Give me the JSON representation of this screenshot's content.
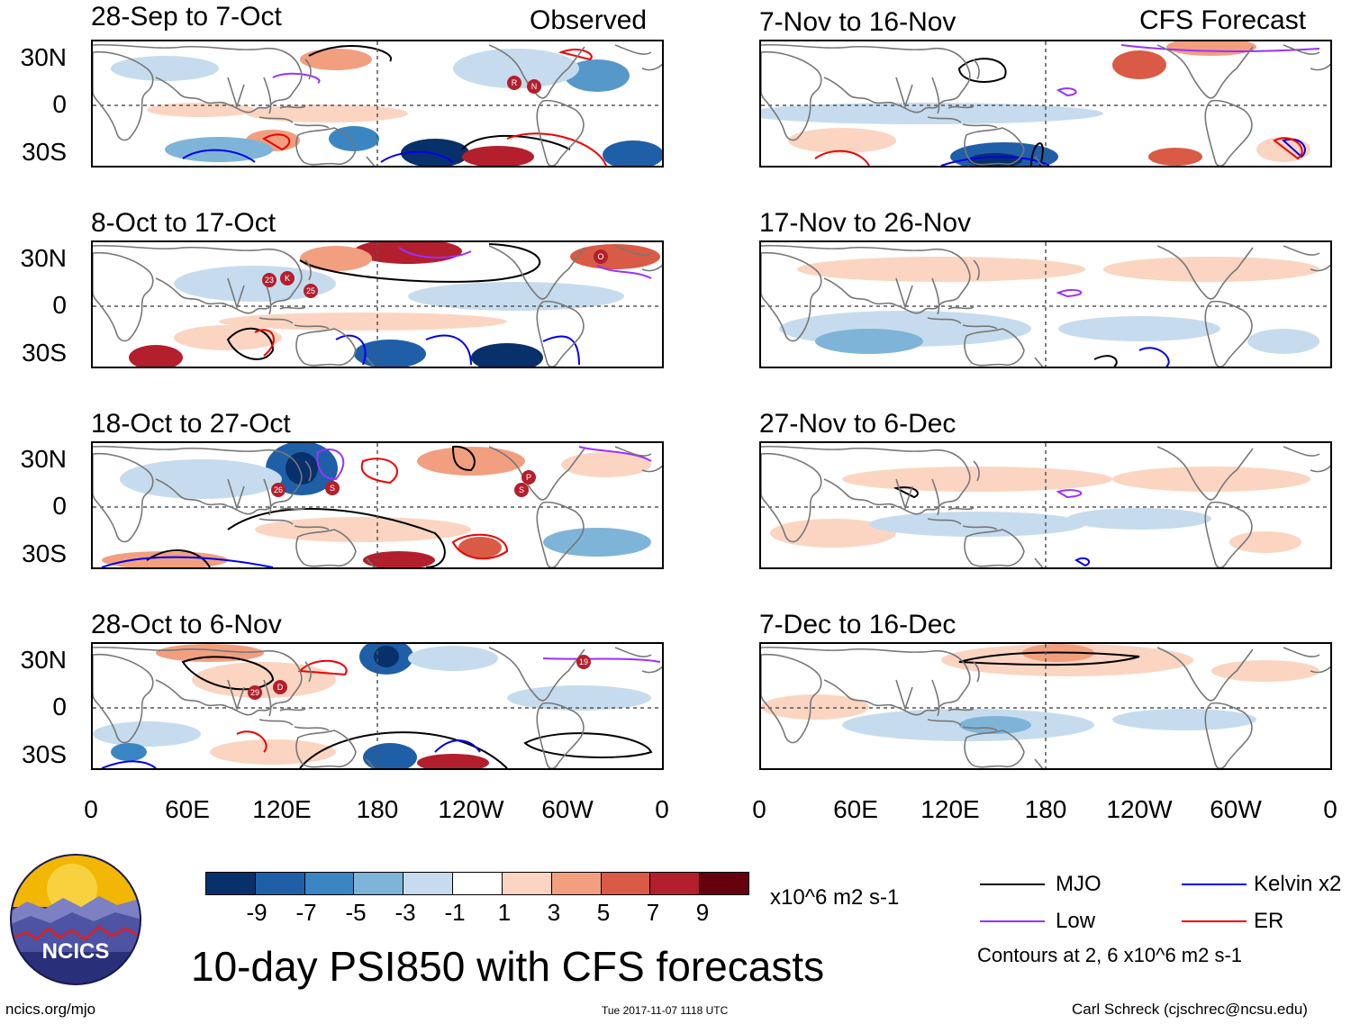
{
  "columns": {
    "observed_label": "Observed",
    "forecast_label": "CFS Forecast"
  },
  "panels": {
    "left": [
      {
        "title": "28-Sep to 7-Oct"
      },
      {
        "title": "8-Oct to 17-Oct"
      },
      {
        "title": "18-Oct to 27-Oct"
      },
      {
        "title": "28-Oct to 6-Nov"
      }
    ],
    "right": [
      {
        "title": "7-Nov to 16-Nov"
      },
      {
        "title": "17-Nov to 26-Nov"
      },
      {
        "title": "27-Nov to 6-Dec"
      },
      {
        "title": "7-Dec to 16-Dec"
      }
    ]
  },
  "lat_labels": [
    "30N",
    "0",
    "30S"
  ],
  "lon_labels": [
    "0",
    "60E",
    "120E",
    "180",
    "120W",
    "60W",
    "0"
  ],
  "storm_markers": {
    "p1": [
      "R",
      "N"
    ],
    "p2": [
      "23",
      "K",
      "25",
      "O"
    ],
    "p3": [
      "26",
      "S",
      "P",
      "S"
    ],
    "p4": [
      "29",
      "D",
      "19"
    ]
  },
  "colorbar": {
    "tick_labels": [
      "-9",
      "-7",
      "-5",
      "-3",
      "-1",
      "1",
      "3",
      "5",
      "7",
      "9"
    ],
    "colors": [
      "#08306b",
      "#1f5fa8",
      "#3a86c2",
      "#7fb4d9",
      "#c6dcee",
      "#ffffff",
      "#fbd5c2",
      "#f19f7f",
      "#d95b45",
      "#b31f2c",
      "#67000d"
    ],
    "units": "x10^6 m2 s-1"
  },
  "legend": {
    "items": [
      {
        "label": "MJO",
        "color": "#000000"
      },
      {
        "label": "Kelvin x2",
        "color": "#0000ee"
      },
      {
        "label": "Low",
        "color": "#9b30ff"
      },
      {
        "label": "ER",
        "color": "#ee0000"
      }
    ],
    "contour_note": "Contours at 2, 6 x10^6 m2 s-1"
  },
  "title": "10-day PSI850 with CFS forecasts",
  "logo_text": "NCICS",
  "footer": {
    "url": "ncics.org/mjo",
    "timestamp": "Tue 2017-11-07 1118 UTC",
    "author": "Carl Schreck (cjschrec@ncsu.edu)"
  }
}
